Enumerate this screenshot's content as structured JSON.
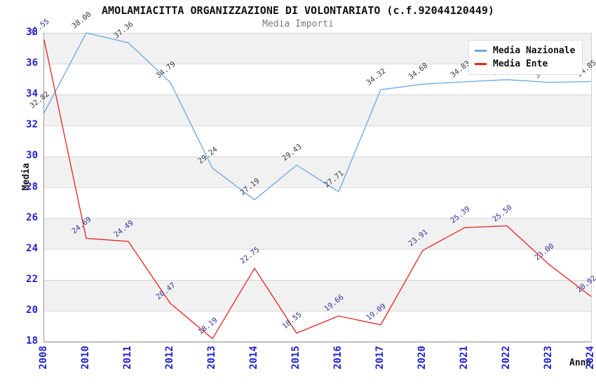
{
  "title": "AMOLAMIACITTA ORGANIZZAZIONE DI VOLONTARIATO (c.f.92044120449)",
  "subtitle": "Media Importi",
  "legend": {
    "position": "top-right",
    "items": [
      {
        "label": "Media Nazionale",
        "color": "#6aa7e4",
        "swatch": "line-swatch-icon"
      },
      {
        "label": "Media Ente",
        "color": "#e82020",
        "swatch": "line-swatch-icon"
      }
    ]
  },
  "axes": {
    "y_label": "Media",
    "x_label": "Anno",
    "y_ticks": [
      38,
      36,
      34,
      32,
      30,
      28,
      26,
      24,
      22,
      20,
      18
    ],
    "x_ticks": [
      "2008",
      "2010",
      "2011",
      "2012",
      "2013",
      "2014",
      "2015",
      "2016",
      "2017",
      "2020",
      "2021",
      "2022",
      "2023",
      "2024"
    ],
    "tick_color": "#2222cc"
  },
  "colors": {
    "band_gray": "#f1f1f1",
    "background": "#ffffff",
    "gridline": "#c0c0c0",
    "nazionale_line": "#6aa7e4",
    "ente_line": "#e82020",
    "nazionale_point_label": "#3c3c3c",
    "ente_point_label": "#333399"
  },
  "chart_data": {
    "type": "line",
    "title": "AMOLAMIACITTA ORGANIZZAZIONE DI VOLONTARIATO (c.f.92044120449)",
    "subtitle": "Media Importi",
    "x": [
      "2008",
      "2010",
      "2011",
      "2012",
      "2013",
      "2014",
      "2015",
      "2016",
      "2017",
      "2020",
      "2021",
      "2022",
      "2023",
      "2024"
    ],
    "series": [
      {
        "name": "Media Nazionale",
        "color": "#6aa7e4",
        "label_color": "#3c3c3c",
        "values": [
          32.82,
          38.0,
          37.36,
          34.79,
          29.24,
          27.19,
          29.43,
          27.71,
          34.32,
          34.68,
          34.83,
          34.97,
          34.8,
          34.85
        ]
      },
      {
        "name": "Media Ente",
        "color": "#e82020",
        "label_color": "#333399",
        "values": [
          37.55,
          24.69,
          24.49,
          20.47,
          18.19,
          22.75,
          18.55,
          19.66,
          19.09,
          23.91,
          25.39,
          25.5,
          23.0,
          20.92
        ]
      }
    ],
    "ylim": [
      18,
      38
    ],
    "xlabel": "Anno",
    "ylabel": "Media",
    "grid": "horizontal gridlines every 2 units with alternating gray bands",
    "legend_position": "top-right",
    "point_labels": "each point labeled with value to 2 decimals, rotated ~38deg",
    "notes": "Media Nazionale labels for 2022 and 2023 are partially hidden behind the legend box; values 34.97 and 34.80 estimated from line position"
  }
}
